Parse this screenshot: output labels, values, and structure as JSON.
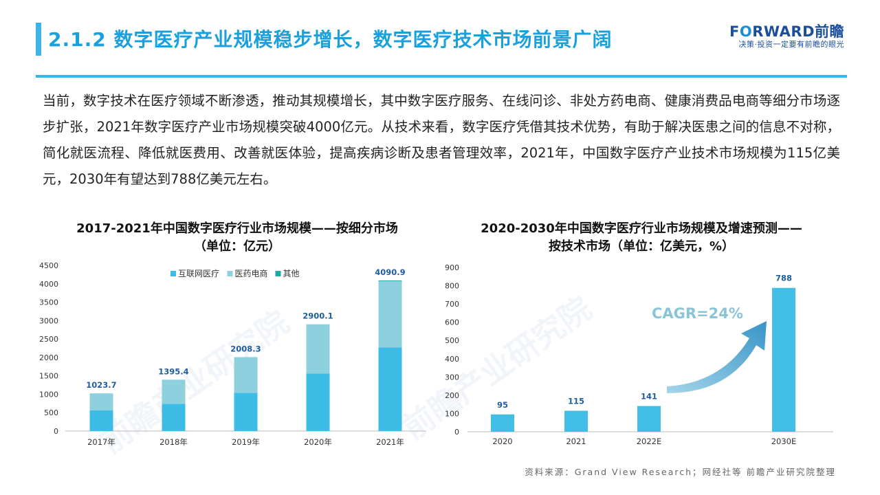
{
  "header": {
    "title": "2.1.2 数字医疗产业规模稳步增长，数字医疗技术市场前景广阔",
    "logo_prefix": "F",
    "logo_o": "O",
    "logo_suffix": "RWARD前瞻",
    "logo_tagline": "决策·投资一定要有前瞻的眼光"
  },
  "paragraph": "当前，数字技术在医疗领域不断渗透，推动其规模增长，其中数字医疗服务、在线问诊、非处方药电商、健康消费品电商等细分市场逐步扩张，2021年数字医疗产业市场规模突破4000亿元。从技术来看，数字医疗凭借其技术优势，有助于解决医患之间的信息不对称，简化就医流程、降低就医费用、改善就医体验，提高疾病诊断及患者管理效率，2021年，中国数字医疗产业技术市场规模为115亿美元，2030年有望达到788亿美元左右。",
  "source": "资料来源：Grand View Research；网经社等 前瞻产业研究院整理",
  "watermark": "前瞻产业研究院",
  "colors": {
    "accent": "#3cb4e5",
    "title": "#1aa0dc",
    "internet_medical": "#3dbce6",
    "pharma_ecommerce": "#8fd0df",
    "other": "#21a9a0",
    "bar2": "#41bde6",
    "label": "#1f5e9e",
    "cagr": "#8ac4d6"
  },
  "chart_data": [
    {
      "type": "bar",
      "stacked": true,
      "title_line1": "2017-2021年中国数字医疗行业市场规模——按细分市场",
      "title_line2": "（单位：亿元）",
      "categories": [
        "2017年",
        "2018年",
        "2019年",
        "2020年",
        "2021年"
      ],
      "series": [
        {
          "name": "互联网医疗",
          "values": [
            560,
            740,
            1040,
            1560,
            2270
          ]
        },
        {
          "name": "医药电商",
          "values": [
            463.7,
            655.4,
            968.3,
            1340.1,
            1810.9
          ]
        },
        {
          "name": "其他",
          "values": [
            0,
            0,
            0,
            0,
            10
          ]
        }
      ],
      "totals": [
        "1023.7",
        "1395.4",
        "2008.3",
        "2900.1",
        "4090.9"
      ],
      "total_values": [
        1023.7,
        1395.4,
        2008.3,
        2900.1,
        4090.9
      ],
      "yticks": [
        "0",
        "500",
        "1000",
        "1500",
        "2000",
        "2500",
        "3000",
        "3500",
        "4000",
        "4500"
      ],
      "ylim": [
        0,
        4500
      ],
      "legend_position": "top-center"
    },
    {
      "type": "bar",
      "title_line1": "2020-2030年中国数字医疗行业市场规模及增速预测——",
      "title_line2": "按技术市场（单位：亿美元，%）",
      "categories": [
        "2020",
        "2021",
        "2022E",
        "2030E"
      ],
      "values": [
        95,
        115,
        141,
        788
      ],
      "value_labels": [
        "95",
        "115",
        "141",
        "788"
      ],
      "yticks": [
        "0",
        "100",
        "200",
        "300",
        "400",
        "500",
        "600",
        "700",
        "800",
        "900"
      ],
      "ylim": [
        0,
        900
      ],
      "annotation": "CAGR=24%"
    }
  ]
}
